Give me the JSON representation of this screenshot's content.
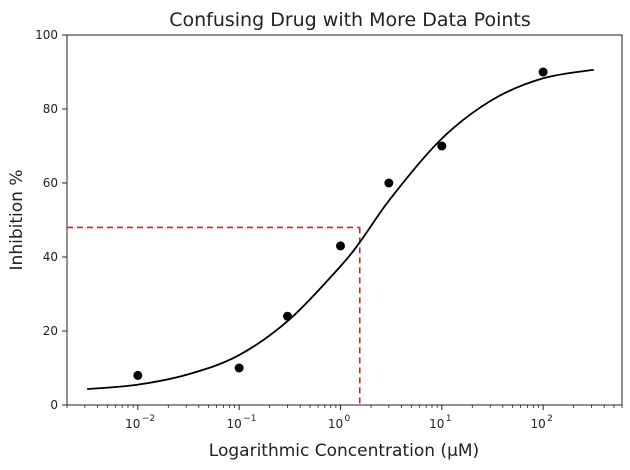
{
  "chart_data": {
    "type": "scatter",
    "title": "Confusing Drug with More Data Points",
    "xlabel": "Logarithmic Concentration (μM)",
    "ylabel": "Inhibition %",
    "x_scale": "log",
    "xlim": [
      0.002,
      600
    ],
    "ylim": [
      0,
      100
    ],
    "x_ticks": [
      0.01,
      0.1,
      1,
      10,
      100
    ],
    "x_tick_labels": [
      {
        "base": "10",
        "exp": "−2"
      },
      {
        "base": "10",
        "exp": "−1"
      },
      {
        "base": "10",
        "exp": "0"
      },
      {
        "base": "10",
        "exp": "1"
      },
      {
        "base": "10",
        "exp": "2"
      }
    ],
    "y_ticks": [
      0,
      20,
      40,
      60,
      80,
      100
    ],
    "y_tick_labels": [
      "0",
      "20",
      "40",
      "60",
      "80",
      "100"
    ],
    "grid": false,
    "legend": "none",
    "series": [
      {
        "type": "scatter",
        "x": [
          0.01,
          0.1,
          0.3,
          1,
          3,
          10,
          100
        ],
        "y": [
          8,
          10,
          24,
          43,
          60,
          70,
          90
        ],
        "color": "#000000"
      },
      {
        "type": "line",
        "x": [
          0.00316,
          0.01,
          0.0316,
          0.1,
          0.316,
          1,
          1.58,
          3.16,
          10,
          31.6,
          100,
          316
        ],
        "y": [
          4.3,
          5.5,
          8.3,
          13.5,
          23.2,
          37.5,
          44.3,
          56.0,
          72.0,
          82.5,
          88.3,
          90.6
        ],
        "color": "#000000"
      }
    ],
    "annotation": {
      "style": "dashed",
      "color": "#e31a1c",
      "x": 1.55,
      "y": 48
    }
  }
}
